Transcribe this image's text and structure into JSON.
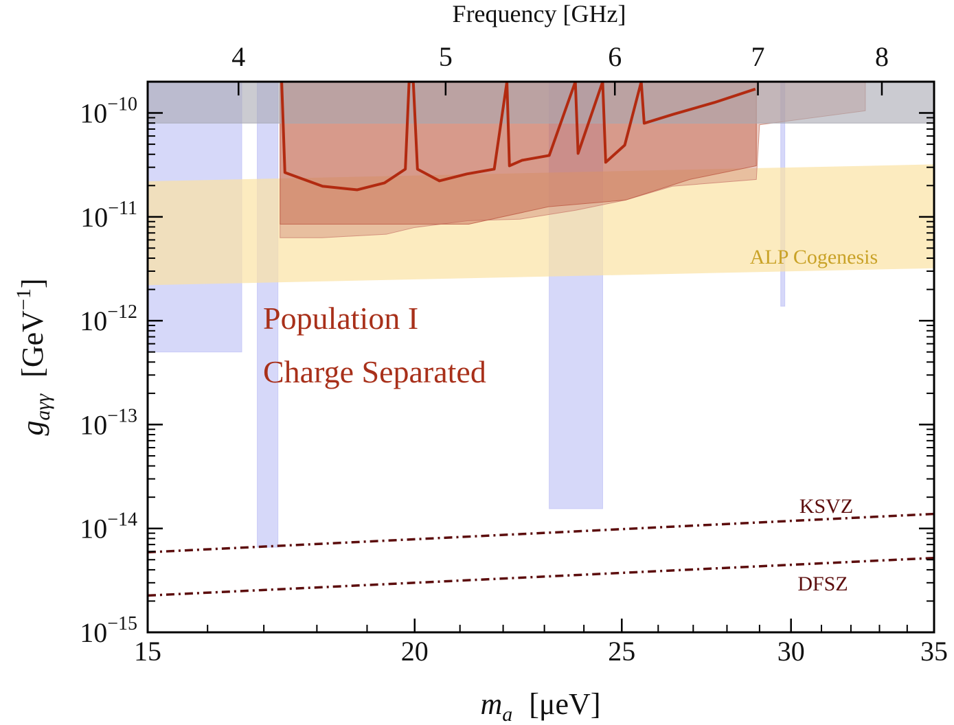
{
  "chart_data": {
    "type": "area",
    "xscale": "log",
    "yscale": "log",
    "xlabel": {
      "symbol": "m",
      "subscript": "a",
      "unit": "[μeV]"
    },
    "ylabel": {
      "symbol": "g",
      "subscript": "aγγ",
      "unit": "[GeV",
      "unit_exponent": "−1",
      "unit_end": "]"
    },
    "x2label": "Frequency  [GHz]",
    "xlim": [
      15,
      35
    ],
    "xticks": [
      15,
      20,
      25,
      30,
      35
    ],
    "xminor": [
      16,
      17,
      18,
      19,
      21,
      22,
      23,
      24,
      26,
      27,
      28,
      29,
      31,
      32,
      33,
      34
    ],
    "x2lim": [
      3.627,
      8.463
    ],
    "x2ticks": [
      4,
      5,
      6,
      7,
      8
    ],
    "ylim": [
      1e-15,
      2e-10
    ],
    "yticks": [
      {
        "value": 1e-15,
        "label": "10",
        "exponent": "−15"
      },
      {
        "value": 1e-14,
        "label": "10",
        "exponent": "−14"
      },
      {
        "value": 1e-13,
        "label": "10",
        "exponent": "−13"
      },
      {
        "value": 1e-12,
        "label": "10",
        "exponent": "−12"
      },
      {
        "value": 1e-11,
        "label": "10",
        "exponent": "−11"
      },
      {
        "value": 1e-10,
        "label": "10",
        "exponent": "−10"
      }
    ],
    "yminor": [
      2e-15,
      3e-15,
      4e-15,
      5e-15,
      6e-15,
      7e-15,
      8e-15,
      9e-15,
      2e-14,
      3e-14,
      4e-14,
      5e-14,
      6e-14,
      7e-14,
      8e-14,
      9e-14,
      2e-13,
      3e-13,
      4e-13,
      5e-13,
      6e-13,
      7e-13,
      8e-13,
      9e-13,
      2e-12,
      3e-12,
      4e-12,
      5e-12,
      6e-12,
      7e-12,
      8e-12,
      9e-12,
      2e-11,
      3e-11,
      4e-11,
      5e-11,
      6e-11,
      7e-11,
      8e-11,
      9e-11,
      2e-10
    ],
    "series": [
      {
        "kind": "fill-to-top",
        "x": [
          15,
          16.6
        ],
        "values": [
          5e-13,
          5e-13
        ],
        "color": "#c5c8f6",
        "opacity": 0.7
      },
      {
        "kind": "fill-to-top",
        "x": [
          16.88,
          17.26
        ],
        "values": [
          6.6e-15,
          6.6e-15
        ],
        "color": "#c5c8f6",
        "opacity": 0.7
      },
      {
        "kind": "fill-to-top",
        "x": [
          23.12,
          24.49
        ],
        "values": [
          1.55e-14,
          1.55e-14
        ],
        "color": "#c5c8f6",
        "opacity": 0.7
      },
      {
        "kind": "fill-to-top",
        "x": [
          29.67,
          29.8
        ],
        "values": [
          1.38e-12,
          1.38e-12
        ],
        "color": "#c5c8f6",
        "opacity": 0.7
      },
      {
        "kind": "band",
        "x": [
          15,
          35
        ],
        "lower": [
          2.2e-12,
          3.2e-12
        ],
        "upper": [
          2.2e-11,
          3.2e-11
        ],
        "color": "#fbe2a4",
        "opacity": 0.7
      },
      {
        "kind": "fill-to-top",
        "x": [
          17.3,
          18.1,
          19.4,
          20.0,
          21.2,
          22.4,
          23.8,
          25.1,
          26.4,
          28.9,
          29.0,
          32.5
        ],
        "values": [
          6.3e-12,
          6.3e-12,
          6.8e-12,
          7.9e-12,
          9.2e-12,
          9.5e-12,
          1.16e-11,
          1.45e-11,
          1.97e-11,
          2.29e-11,
          7.7e-11,
          1.05e-10
        ],
        "color": "#d08a78",
        "opacity": 0.45
      },
      {
        "kind": "fill-to-top",
        "x": [
          17.3,
          19.4,
          21.2,
          23.1,
          25.1,
          26.9,
          28.9
        ],
        "values": [
          8.5e-12,
          8.5e-12,
          8.5e-12,
          1.25e-11,
          1.45e-11,
          2.29e-11,
          3.1e-11
        ],
        "color": "#c0604a",
        "opacity": 0.45
      },
      {
        "kind": "fill-to-top",
        "x": [
          15,
          35
        ],
        "values": [
          8e-11,
          8e-11
        ],
        "color": "#a9a9b2",
        "opacity": 0.6
      },
      {
        "kind": "line",
        "x": [
          17.33,
          17.39,
          18.11,
          18.8,
          19.36,
          19.8,
          19.88,
          19.97,
          20.06,
          20.54,
          21.16,
          21.79,
          22.09,
          22.15,
          22.45,
          23.12,
          23.78,
          23.85,
          24.49,
          24.57,
          25.08,
          25.53,
          25.61,
          26.42,
          27.62,
          28.87
        ],
        "values": [
          2e-10,
          2.67e-11,
          1.97e-11,
          1.82e-11,
          2.12e-11,
          2.88e-11,
          2e-10,
          2e-10,
          2.88e-11,
          2.22e-11,
          2.59e-11,
          2.88e-11,
          2e-10,
          3.1e-11,
          3.5e-11,
          3.9e-11,
          2e-10,
          4.08e-11,
          2e-10,
          3.35e-11,
          4.9e-11,
          2e-10,
          7.96e-11,
          9.7e-11,
          1.26e-10,
          1.7e-10
        ],
        "color": "#b22a10",
        "width": 4
      },
      {
        "kind": "line",
        "x": [
          15,
          35
        ],
        "values": [
          5.9e-15,
          1.38e-14
        ],
        "color": "#5c0d0d",
        "width": 3.5,
        "dash": "dashdot"
      },
      {
        "kind": "line",
        "x": [
          15,
          35
        ],
        "values": [
          2.26e-15,
          5.2e-15
        ],
        "color": "#5c0d0d",
        "width": 3.5,
        "dash": "dashdot"
      }
    ],
    "annotations": [
      "ALP Cogenesis",
      "Population I",
      "Charge Separated",
      "KSVZ",
      "DFSZ"
    ]
  }
}
